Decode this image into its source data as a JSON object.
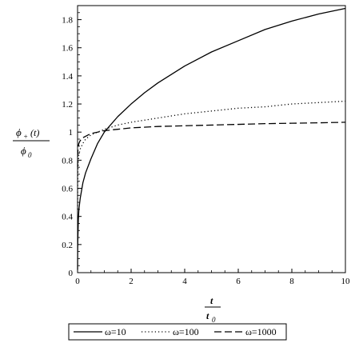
{
  "chart_data": {
    "type": "line",
    "xlim": [
      0,
      10
    ],
    "ylim": [
      0,
      1.9
    ],
    "x_ticks": [
      0,
      2,
      4,
      6,
      8,
      10
    ],
    "y_ticks": [
      0,
      0.2,
      0.4,
      0.6,
      0.8,
      1,
      1.2,
      1.4,
      1.6,
      1.8
    ],
    "x_tick_labels": [
      "0",
      "2",
      "4",
      "6",
      "8",
      "10"
    ],
    "y_tick_labels": [
      "0",
      "0.2",
      "0.4",
      "0.6",
      "0.8",
      "1",
      "1.2",
      "1.4",
      "1.6",
      "1.8"
    ],
    "xlabel": {
      "numerator": "t",
      "denominator": "t",
      "denominator_sub": "0"
    },
    "ylabel": {
      "numerator": "ϕ",
      "numerator_sub": "+",
      "numerator_arg": "(t)",
      "denominator": "ϕ",
      "denominator_sub": "0"
    },
    "grid": false,
    "legend_position": "bottom",
    "series": [
      {
        "name": "ω=10",
        "style": "solid",
        "color": "#000000",
        "x": [
          0.001,
          0.005,
          0.01,
          0.03,
          0.05,
          0.1,
          0.2,
          0.3,
          0.5,
          0.75,
          1,
          1.5,
          2,
          2.5,
          3,
          4,
          5,
          6,
          7,
          8,
          9,
          10
        ],
        "y": [
          0.02,
          0.16,
          0.23,
          0.38,
          0.45,
          0.53,
          0.64,
          0.71,
          0.81,
          0.92,
          1.0,
          1.11,
          1.2,
          1.28,
          1.35,
          1.47,
          1.57,
          1.65,
          1.73,
          1.79,
          1.84,
          1.88
        ]
      },
      {
        "name": "ω=100",
        "style": "dotted",
        "color": "#000000",
        "x": [
          0.001,
          0.005,
          0.01,
          0.03,
          0.05,
          0.1,
          0.2,
          0.3,
          0.5,
          0.75,
          1,
          1.5,
          2,
          3,
          4,
          5,
          6,
          7,
          8,
          9,
          10
        ],
        "y": [
          0.45,
          0.62,
          0.7,
          0.8,
          0.84,
          0.88,
          0.92,
          0.95,
          0.98,
          1.0,
          1.02,
          1.05,
          1.07,
          1.1,
          1.13,
          1.15,
          1.17,
          1.18,
          1.2,
          1.21,
          1.22
        ]
      },
      {
        "name": "ω=1000",
        "style": "dashed",
        "color": "#000000",
        "x": [
          0.001,
          0.005,
          0.01,
          0.03,
          0.05,
          0.1,
          0.2,
          0.3,
          0.5,
          0.75,
          1,
          1.5,
          2,
          3,
          4,
          5,
          6,
          7,
          8,
          9,
          10
        ],
        "y": [
          0.75,
          0.82,
          0.86,
          0.9,
          0.92,
          0.94,
          0.96,
          0.97,
          0.99,
          1.0,
          1.01,
          1.02,
          1.03,
          1.04,
          1.045,
          1.05,
          1.055,
          1.06,
          1.063,
          1.066,
          1.07
        ]
      }
    ]
  }
}
